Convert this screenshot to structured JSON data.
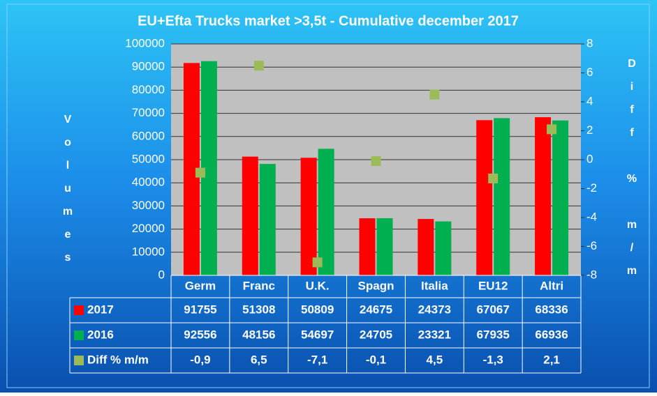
{
  "chart_data": {
    "type": "bar",
    "title": "EU+Efta Trucks market  >3,5t -  Cumulative december 2017",
    "y_label": "Volumes",
    "y2_label": "Diff % m/m",
    "categories": [
      "Germ",
      "Franc",
      "U.K.",
      "Spagn",
      "Italia",
      "EU12",
      "Altri"
    ],
    "series": [
      {
        "name": "2017",
        "color": "#ff0000",
        "values": [
          91755,
          51308,
          50809,
          24675,
          24373,
          67067,
          68336
        ]
      },
      {
        "name": "2016",
        "color": "#00b050",
        "values": [
          92556,
          48156,
          54697,
          24705,
          23321,
          67935,
          66936
        ]
      },
      {
        "name": "Diff % m/m",
        "color": "#9bbb59",
        "axis": "y2",
        "values": [
          -0.9,
          6.5,
          -7.1,
          -0.1,
          4.5,
          -1.3,
          2.1
        ],
        "value_labels": [
          "-0,9",
          "6,5",
          "-7,1",
          "-0,1",
          "4,5",
          "-1,3",
          "2,1"
        ]
      }
    ],
    "ylim": [
      0,
      100000
    ],
    "yticks": [
      0,
      10000,
      20000,
      30000,
      40000,
      50000,
      60000,
      70000,
      80000,
      90000,
      100000
    ],
    "y2lim": [
      -8,
      8
    ],
    "y2ticks": [
      -8,
      -6,
      -4,
      -2,
      0,
      2,
      4,
      6,
      8
    ],
    "grid": true
  }
}
